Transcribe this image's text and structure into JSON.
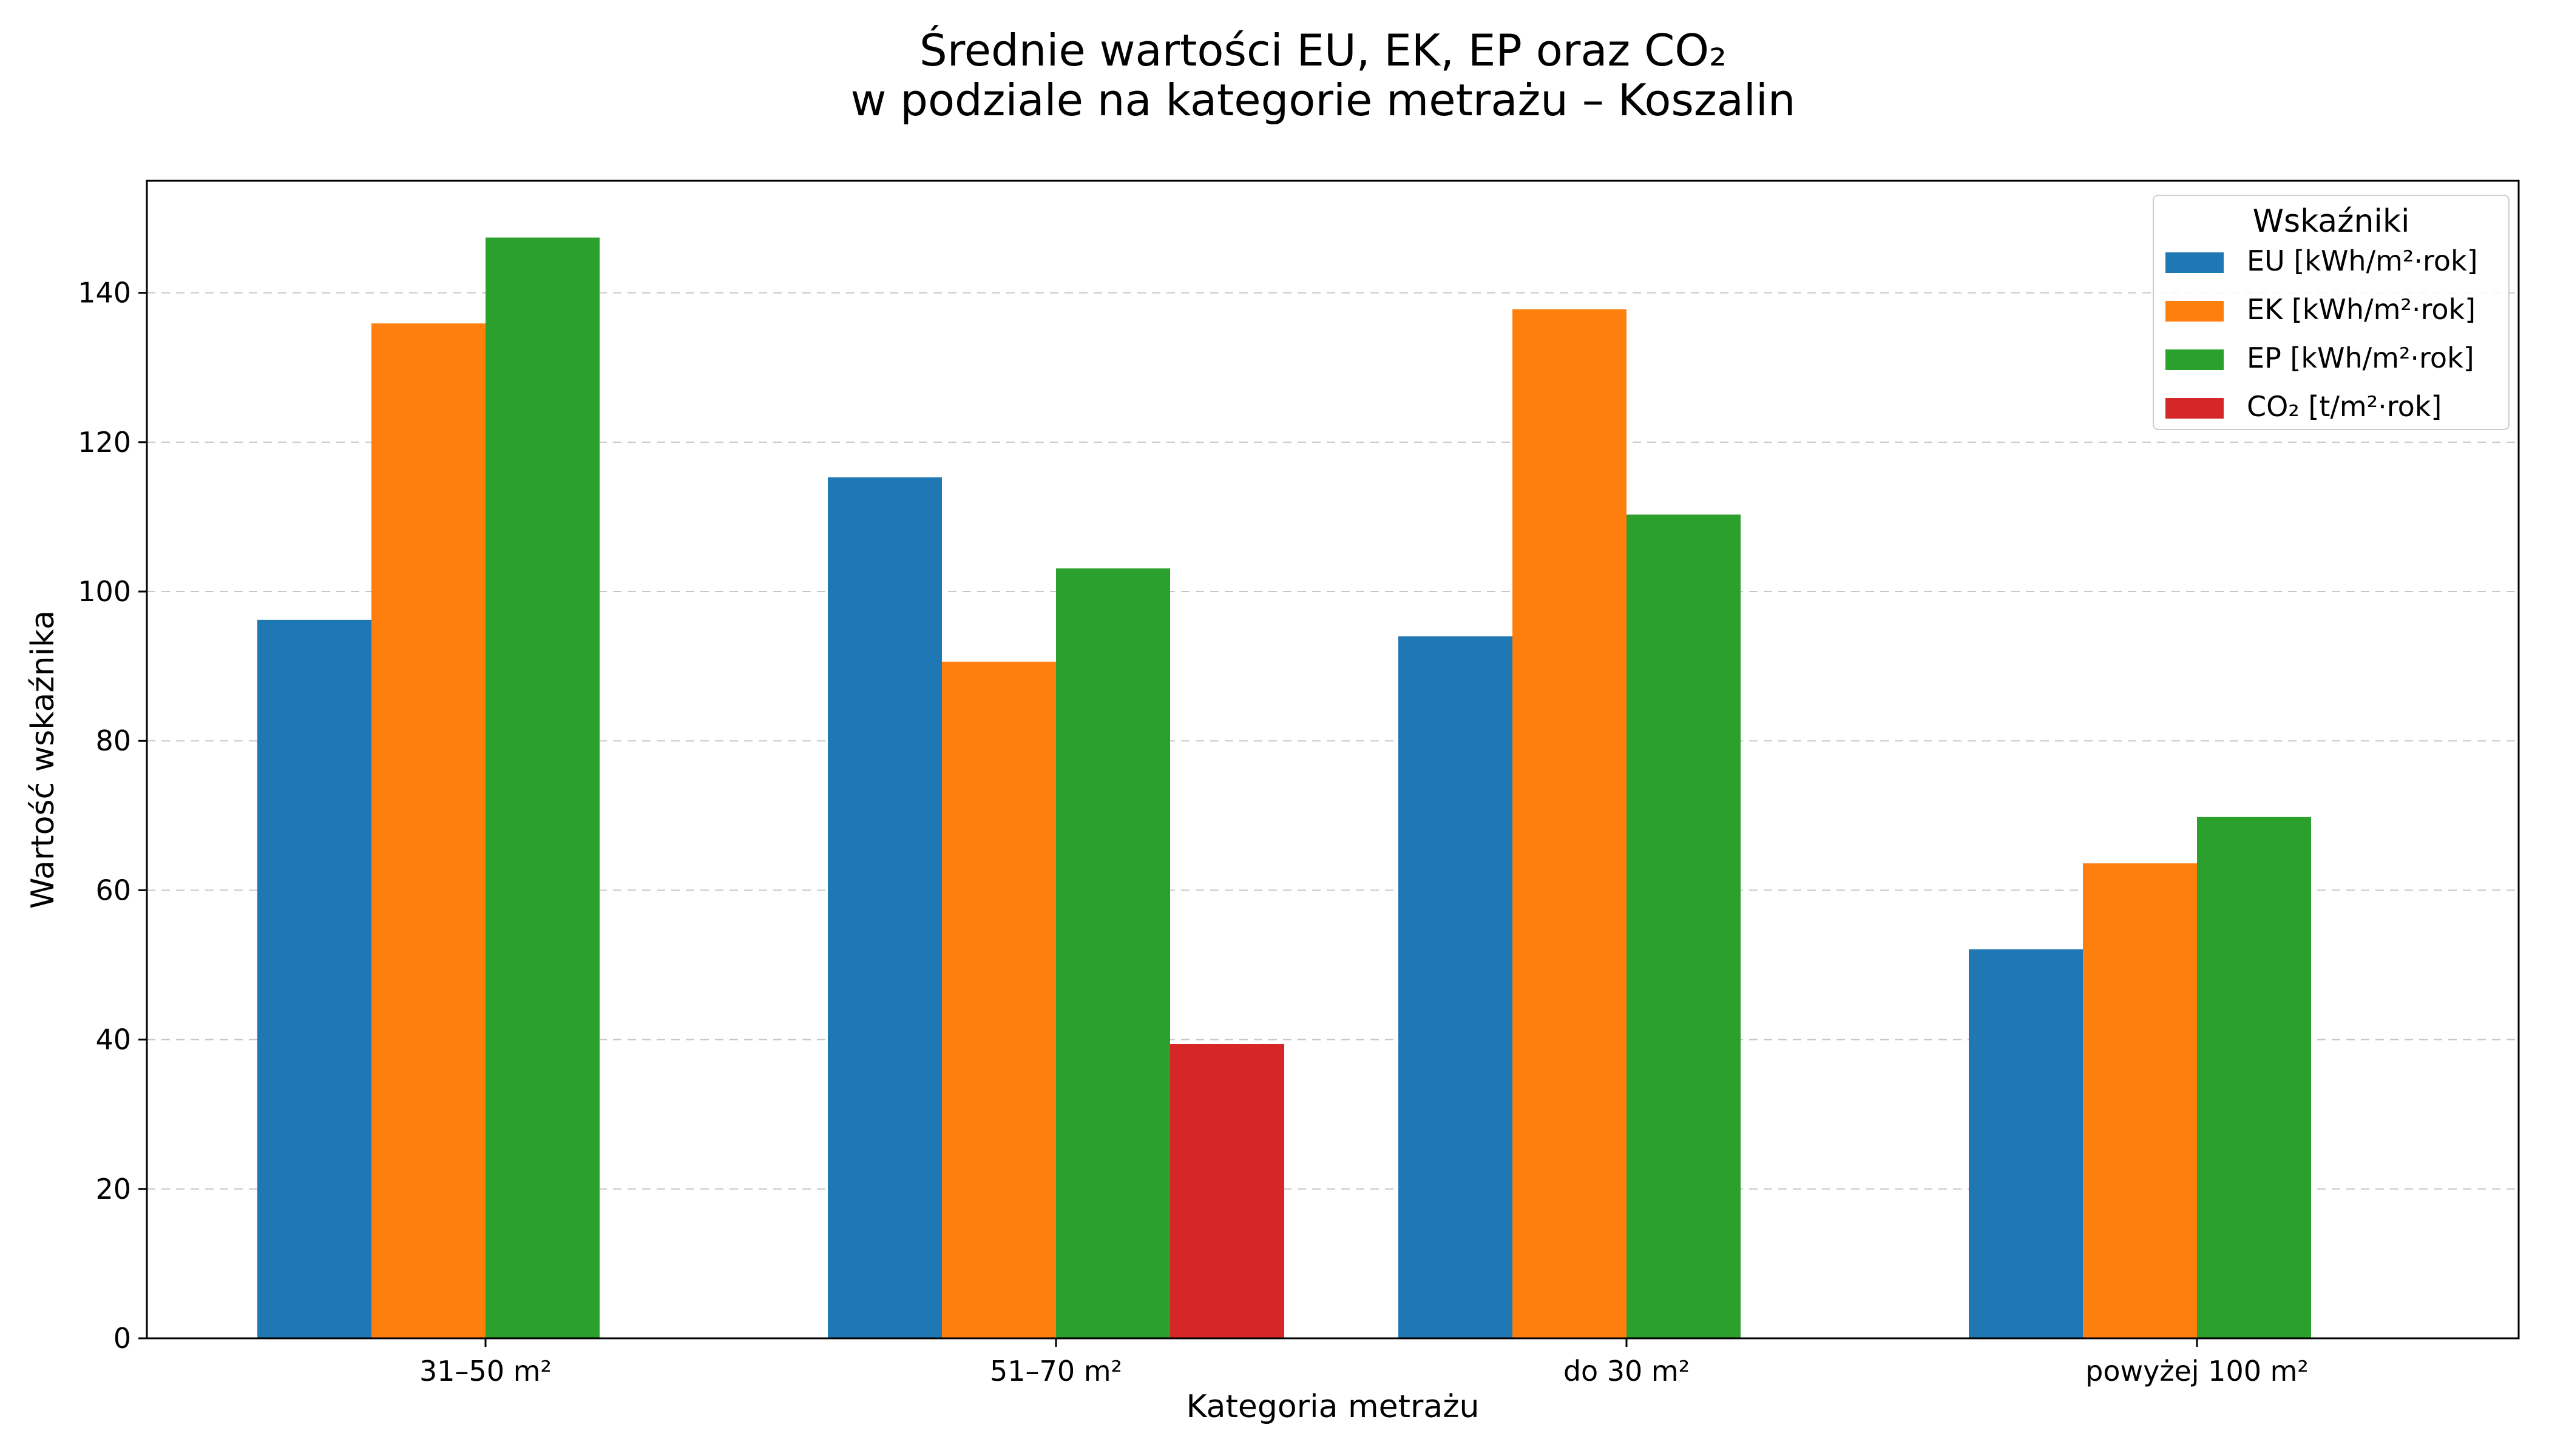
{
  "chart_data": {
    "type": "bar",
    "title": [
      "Średnie wartości EU, EK, EP oraz CO₂",
      "w podziale na kategorie metrażu – Koszalin"
    ],
    "xlabel": "Kategoria metrażu",
    "ylabel": "Wartość wskaźnika",
    "categories": [
      "31–50 m²",
      "51–70 m²",
      "do 30 m²",
      "powyżej 100 m²"
    ],
    "ylim": [
      0,
      155
    ],
    "yticks": [
      0,
      20,
      40,
      60,
      80,
      100,
      120,
      140
    ],
    "grid": true,
    "legend": {
      "title": "Wskaźniki",
      "placement": "top-right"
    },
    "series": [
      {
        "name": "EU [kWh/m²·rok]",
        "color": "#1f77b4",
        "values": [
          96.2,
          115.3,
          94.0,
          52.1
        ]
      },
      {
        "name": "EK [kWh/m²·rok]",
        "color": "#ff7f0e",
        "values": [
          135.9,
          90.6,
          137.8,
          63.6
        ]
      },
      {
        "name": "EP [kWh/m²·rok]",
        "color": "#2ca02c",
        "values": [
          147.4,
          103.1,
          110.3,
          69.8
        ]
      },
      {
        "name": "CO₂ [t/m²·rok]",
        "color": "#d62728",
        "values": [
          null,
          39.4,
          null,
          null
        ]
      }
    ]
  }
}
